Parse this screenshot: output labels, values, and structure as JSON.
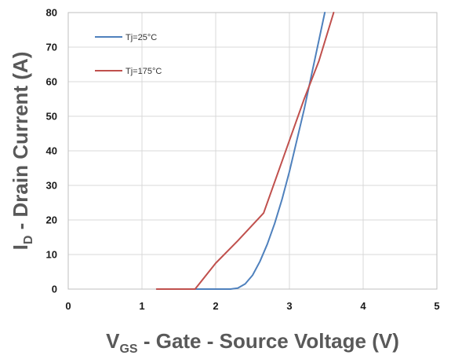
{
  "chart_data": {
    "type": "line",
    "xlabel": {
      "main": "V",
      "sub": "GS",
      "rest": " - Gate - Source Voltage (V)"
    },
    "ylabel": {
      "main": "I",
      "sub": "D",
      "rest": " - Drain Current (A)"
    },
    "xlim": [
      0,
      5
    ],
    "ylim": [
      0,
      80
    ],
    "xticks": [
      0,
      1,
      2,
      3,
      4,
      5
    ],
    "yticks": [
      0,
      10,
      20,
      30,
      40,
      50,
      60,
      70,
      80
    ],
    "grid": true,
    "legend_position": "top-left",
    "series": [
      {
        "name": "Tj=25°C",
        "color": "#4f81bd",
        "points": [
          [
            1.2,
            0
          ],
          [
            2.2,
            0
          ],
          [
            2.3,
            0.3
          ],
          [
            2.4,
            1.5
          ],
          [
            2.5,
            4
          ],
          [
            2.6,
            8
          ],
          [
            2.7,
            13
          ],
          [
            2.8,
            19
          ],
          [
            2.9,
            26
          ],
          [
            3.0,
            34
          ],
          [
            3.1,
            43
          ],
          [
            3.2,
            52
          ],
          [
            3.3,
            62
          ],
          [
            3.4,
            72
          ],
          [
            3.48,
            80
          ]
        ]
      },
      {
        "name": "Tj=175°C",
        "color": "#c0504d",
        "points": [
          [
            1.2,
            0
          ],
          [
            1.72,
            0
          ],
          [
            2.0,
            7.5
          ],
          [
            2.3,
            14
          ],
          [
            2.65,
            22
          ],
          [
            3.0,
            43
          ],
          [
            3.2,
            55
          ],
          [
            3.4,
            66
          ],
          [
            3.6,
            80
          ]
        ]
      }
    ]
  }
}
